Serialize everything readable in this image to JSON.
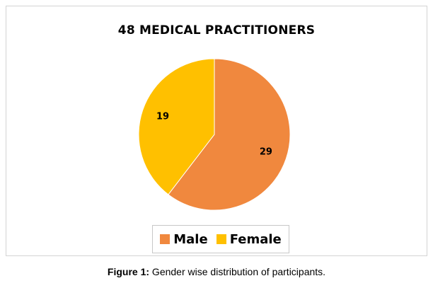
{
  "chart_data": {
    "type": "pie",
    "title": "48 MEDICAL PRACTITIONERS",
    "categories": [
      "Male",
      "Female"
    ],
    "values": [
      29,
      19
    ],
    "colors": [
      "#f0883e",
      "#ffc000"
    ],
    "data_labels": [
      "29",
      "19"
    ],
    "legend_position": "bottom",
    "start": "top, clockwise"
  },
  "caption": {
    "label": "Figure 1:",
    "text": " Gender wise distribution of participants."
  }
}
